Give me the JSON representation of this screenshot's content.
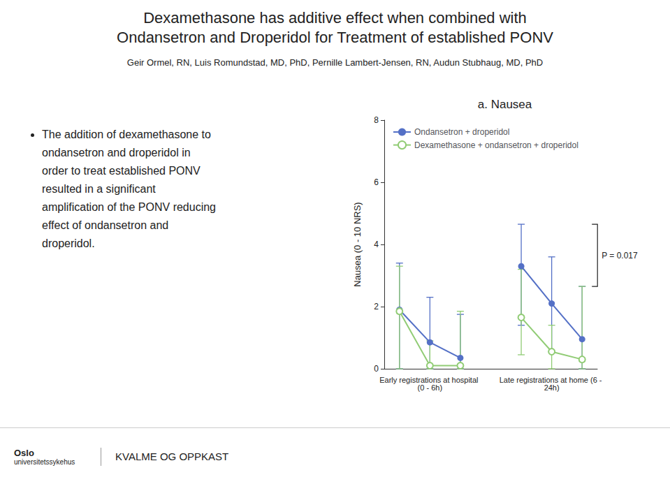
{
  "chart_data": {
    "type": "line",
    "heading": [
      "Dexamethasone has additive effect when combined with",
      "Ondansetron and Droperidol for Treatment of established PONV"
    ],
    "subtitle": "Geir Ormel, RN, Luis Romundstad, MD, PhD, Pernille Lambert-Jensen, RN, Audun Stubhaug, MD, PhD",
    "text": "The addition of dexamethasone to\nondansetron and droperidol in\norder to treat established PONV\nresulted in a significant\namplification of the PONV reducing\neffect of ondansetron and\ndroperidol.",
    "title": "a. Nausea",
    "ylabel": "Nausea (0 - 10 NRS)",
    "categories": [
      null,
      "Early registrations at hospital (0 - 6h)",
      null,
      null,
      null,
      "Late registrations at home (6 - 24h)",
      null
    ],
    "series": [
      {
        "name": "Ondansetron + droperidol",
        "marker": "circle",
        "values": [
          1.9,
          0.85,
          0.35,
          null,
          3.3,
          2.1,
          0.95
        ],
        "error_low": [
          0.0,
          0.0,
          0.0,
          null,
          1.4,
          0.55,
          0.0
        ],
        "error_high": [
          3.4,
          2.3,
          1.75,
          null,
          4.65,
          3.6,
          2.65
        ]
      },
      {
        "name": "Dexamethasone + ondansetron + droperidol",
        "marker": "open circle",
        "values": [
          1.85,
          0.1,
          0.1,
          null,
          1.65,
          0.55,
          0.3
        ],
        "error_low": [
          0.0,
          0.0,
          0.0,
          null,
          0.45,
          0.0,
          0.0
        ],
        "error_high": [
          3.3,
          0.9,
          1.85,
          null,
          3.2,
          1.4,
          2.65
        ]
      }
    ],
    "ylim": [
      0,
      8
    ],
    "yticks": [
      0,
      2,
      4,
      6,
      8
    ],
    "grid": false,
    "legend": "upper left",
    "annotations": [
      {
        "text": "P = 0.017",
        "y_from": 2.65,
        "y_to": 4.65
      }
    ],
    "footer": "KVALME OG OPPKAST",
    "logo_text": [
      "Oslo",
      "universitetssykehus"
    ]
  }
}
